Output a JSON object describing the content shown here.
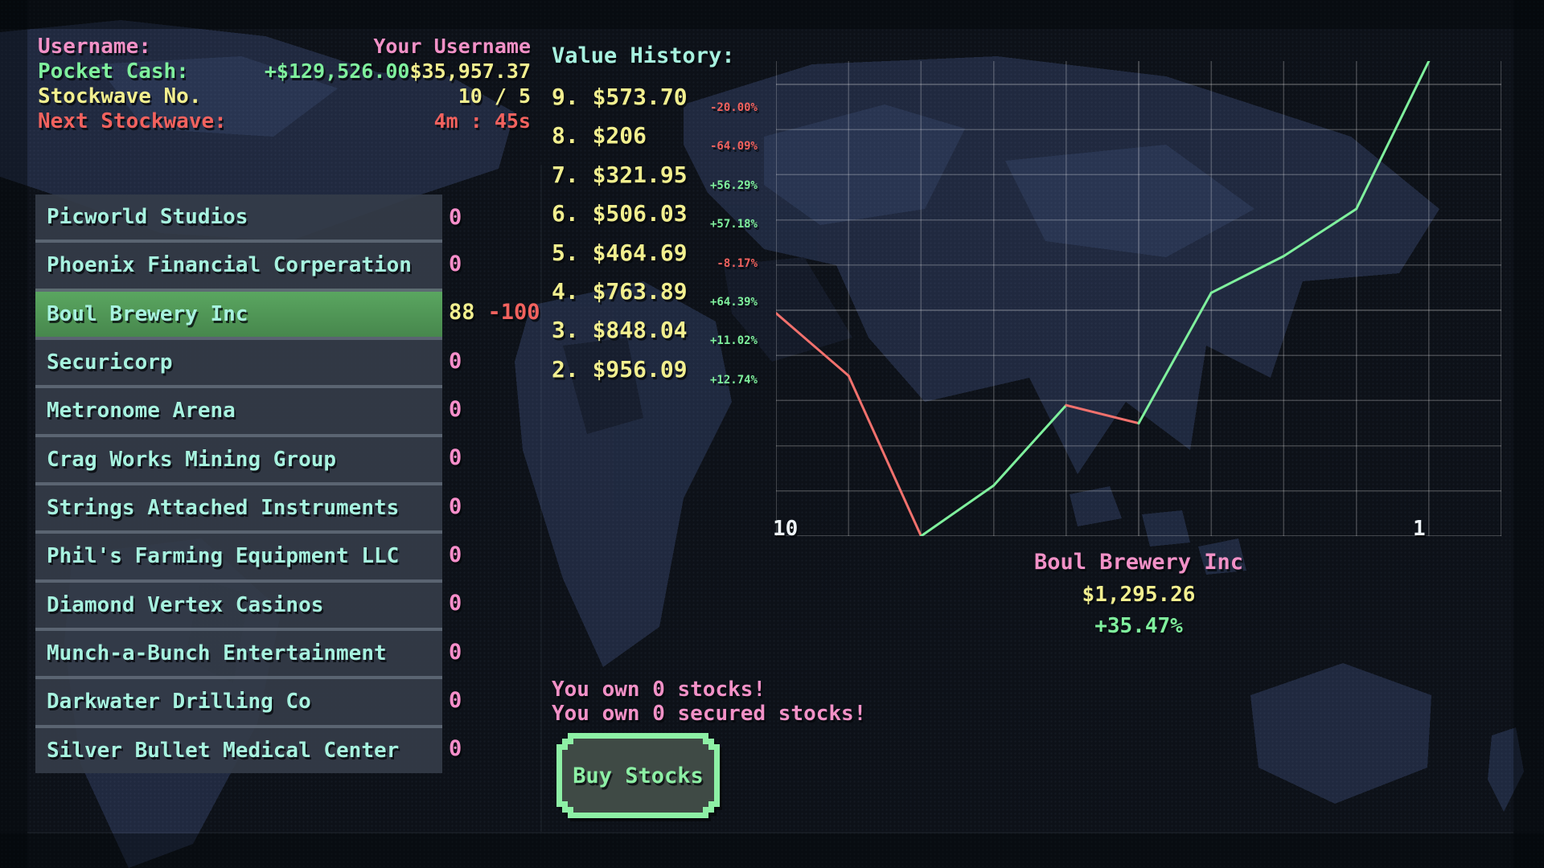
{
  "colors": {
    "pink": "#f291c7",
    "green": "#7ff09d",
    "yellow": "#f2ef8f",
    "red": "#f2625e",
    "cyan": "#a7f2df",
    "white": "#eef4f7",
    "count_pink": "#f98fcb",
    "highlight_green": "#4d9150",
    "button_green": "#8df0a5"
  },
  "header": {
    "rows": [
      {
        "label": "Username:",
        "label_color": "pink",
        "values": [
          {
            "text": "Your Username",
            "color": "pink"
          }
        ]
      },
      {
        "label": "Pocket Cash:",
        "label_color": "green",
        "values": [
          {
            "text": "+$129,526.00",
            "color": "green"
          },
          {
            "text": "$35,957.37",
            "color": "yellow"
          }
        ]
      },
      {
        "label": "Stockwave No.",
        "label_color": "yellow",
        "values": [
          {
            "text": "10 / 5",
            "color": "yellow"
          }
        ]
      },
      {
        "label": "Next Stockwave:",
        "label_color": "red",
        "values": [
          {
            "text": "4m : 45s",
            "color": "red"
          }
        ]
      }
    ]
  },
  "stock_list": [
    {
      "name": "Picworld Studios",
      "count": "0"
    },
    {
      "name": "Phoenix Financial Corperation",
      "count": "0"
    },
    {
      "name": "Boul Brewery Inc",
      "count": "88",
      "delta": "-100",
      "selected": true
    },
    {
      "name": "Securicorp",
      "count": "0"
    },
    {
      "name": "Metronome Arena",
      "count": "0"
    },
    {
      "name": "Crag Works Mining Group",
      "count": "0"
    },
    {
      "name": "Strings Attached Instruments",
      "count": "0"
    },
    {
      "name": "Phil's Farming Equipment LLC",
      "count": "0"
    },
    {
      "name": "Diamond Vertex Casinos",
      "count": "0"
    },
    {
      "name": "Munch-a-Bunch Entertainment",
      "count": "0"
    },
    {
      "name": "Darkwater Drilling Co",
      "count": "0"
    },
    {
      "name": "Silver Bullet Medical Center",
      "count": "0"
    }
  ],
  "value_history": {
    "title": "Value History:",
    "entries": [
      {
        "label": "9. $573.70",
        "pct": "-20.00%",
        "direction": "down"
      },
      {
        "label": "8. $206",
        "pct": "-64.09%",
        "direction": "down"
      },
      {
        "label": "7. $321.95",
        "pct": "+56.29%",
        "direction": "up"
      },
      {
        "label": "6. $506.03",
        "pct": "+57.18%",
        "direction": "up"
      },
      {
        "label": "5. $464.69",
        "pct": "-8.17%",
        "direction": "down"
      },
      {
        "label": "4. $763.89",
        "pct": "+64.39%",
        "direction": "up"
      },
      {
        "label": "3. $848.04",
        "pct": "+11.02%",
        "direction": "up"
      },
      {
        "label": "2. $956.09",
        "pct": "+12.74%",
        "direction": "up"
      }
    ]
  },
  "chart_data": {
    "type": "line",
    "title": "Boul Brewery Inc",
    "x": [
      10,
      9,
      8,
      7,
      6,
      5,
      4,
      3,
      2,
      1
    ],
    "values": [
      717.1,
      573.7,
      206,
      321.95,
      506.03,
      464.69,
      763.89,
      848.04,
      956.09,
      1295.26
    ],
    "ylim": [
      206,
      1295.26
    ],
    "xlabel_left": "10",
    "xlabel_right": "1",
    "grid": true,
    "up_color": "#7ff09d",
    "down_color": "#f2716d"
  },
  "selected_stock": {
    "name": "Boul Brewery Inc",
    "price": "$1,295.26",
    "change": "+35.47%"
  },
  "ownership": {
    "line1": "You own 0 stocks!",
    "line2": "You own 0 secured stocks!"
  },
  "buy_button": {
    "label": "Buy Stocks"
  }
}
